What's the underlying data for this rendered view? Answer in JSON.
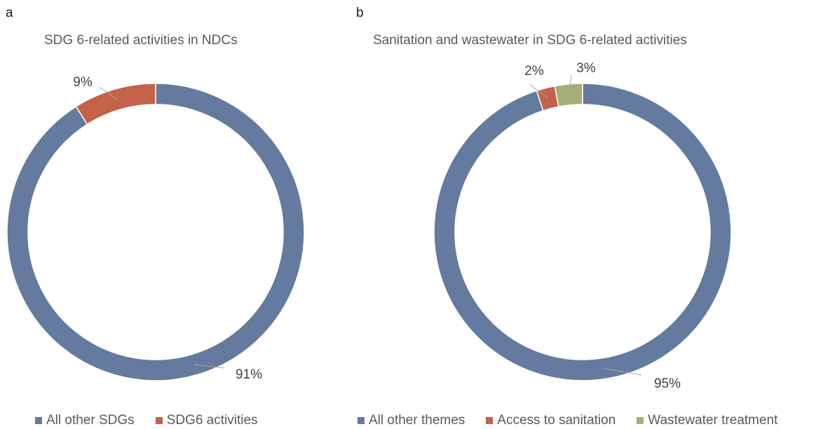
{
  "chart_data": [
    {
      "type": "pie",
      "panel_label": "a",
      "title": "SDG 6-related activities in NDCs",
      "categories": [
        "All other SDGs",
        "SDG6 activities"
      ],
      "values": [
        91,
        9
      ],
      "data_labels": [
        "91%",
        "9%"
      ],
      "colors": [
        "#647b9f",
        "#c4624a"
      ],
      "donut": true,
      "legend_position": "bottom"
    },
    {
      "type": "pie",
      "panel_label": "b",
      "title": "Sanitation and wastewater in SDG 6-related activities",
      "categories": [
        "All other themes",
        "Access to sanitation",
        "Wastewater treatment"
      ],
      "values": [
        95,
        2,
        3
      ],
      "data_labels": [
        "95%",
        "2%",
        "3%"
      ],
      "colors": [
        "#647b9f",
        "#c4624a",
        "#a7ad74"
      ],
      "donut": true,
      "legend_position": "bottom"
    }
  ]
}
